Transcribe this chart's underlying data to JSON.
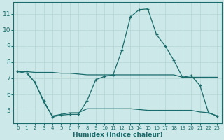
{
  "xlabel": "Humidex (Indice chaleur)",
  "bg_color": "#cce8e8",
  "grid_color": "#b8d8d8",
  "line_color": "#1a6b6b",
  "xlim": [
    -0.5,
    23.5
  ],
  "ylim": [
    4.2,
    11.7
  ],
  "yticks": [
    5,
    6,
    7,
    8,
    9,
    10,
    11
  ],
  "xticks": [
    0,
    1,
    2,
    3,
    4,
    5,
    6,
    7,
    8,
    9,
    10,
    11,
    12,
    13,
    14,
    15,
    16,
    17,
    18,
    19,
    20,
    21,
    22,
    23
  ],
  "curve1_x": [
    0,
    1,
    2,
    3,
    4,
    5,
    6,
    7,
    8,
    9,
    10,
    11,
    12,
    13,
    14,
    15,
    16,
    17,
    18,
    19,
    20,
    21,
    22,
    23
  ],
  "curve1_y": [
    7.4,
    7.4,
    7.35,
    7.35,
    7.35,
    7.3,
    7.3,
    7.25,
    7.2,
    7.2,
    7.2,
    7.2,
    7.2,
    7.2,
    7.2,
    7.2,
    7.2,
    7.2,
    7.2,
    7.05,
    7.05,
    7.05,
    7.05,
    7.05
  ],
  "curve2_x": [
    0,
    1,
    2,
    3,
    4,
    5,
    6,
    7,
    8,
    9,
    10,
    11,
    12,
    13,
    14,
    15,
    16,
    17,
    18,
    19,
    20,
    21,
    22,
    23
  ],
  "curve2_y": [
    7.4,
    7.4,
    6.7,
    5.6,
    4.6,
    4.7,
    4.75,
    4.75,
    5.6,
    6.9,
    7.1,
    7.2,
    8.7,
    10.8,
    11.25,
    11.3,
    9.7,
    9.0,
    8.1,
    7.05,
    7.15,
    6.55,
    4.85,
    4.65
  ],
  "curve3_x": [
    0,
    1,
    2,
    3,
    4,
    5,
    6,
    7,
    8,
    9,
    10,
    11,
    12,
    13,
    14,
    15,
    16,
    17,
    18,
    19,
    20,
    21,
    22,
    23
  ],
  "curve3_y": [
    7.4,
    7.3,
    6.75,
    5.5,
    4.65,
    4.75,
    4.85,
    4.85,
    5.1,
    5.1,
    5.1,
    5.1,
    5.1,
    5.1,
    5.05,
    5.0,
    5.0,
    5.0,
    5.0,
    5.0,
    5.0,
    4.9,
    4.85,
    4.65
  ]
}
